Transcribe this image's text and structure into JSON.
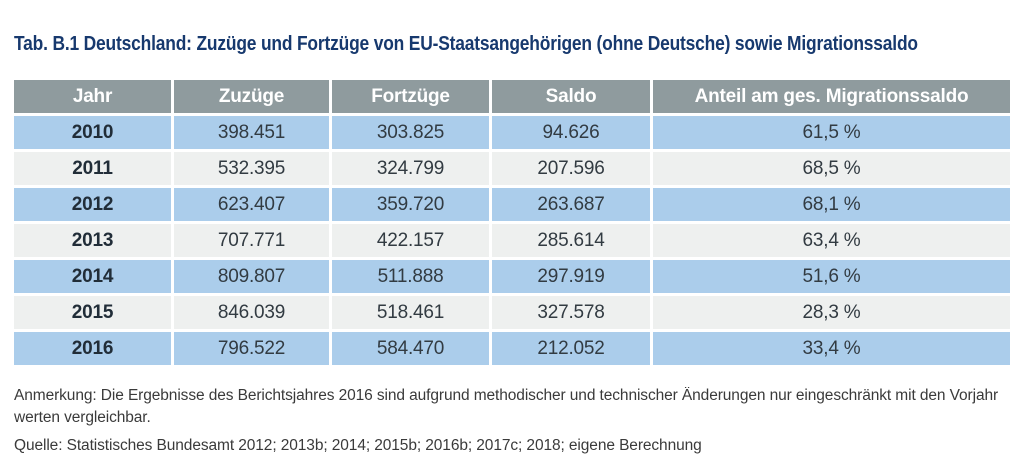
{
  "title": "Tab. B.1 Deutschland: Zuzüge und Fortzüge von EU-Staatsangehörigen (ohne Deutsche) sowie Migrationssaldo",
  "colors": {
    "title_blue": "#17396e",
    "header_gray": "#8f9b9e",
    "row_blue": "#abcdeb",
    "row_gray": "#eef0ef",
    "header_text": "#ffffff",
    "cell_text": "#323b42"
  },
  "table": {
    "columns": [
      "Jahr",
      "Zuzüge",
      "Fortzüge",
      "Saldo",
      "Anteil am ges. Migrationssaldo"
    ],
    "rows": [
      [
        "2010",
        "398.451",
        "303.825",
        "94.626",
        "61,5 %"
      ],
      [
        "2011",
        "532.395",
        "324.799",
        "207.596",
        "68,5 %"
      ],
      [
        "2012",
        "623.407",
        "359.720",
        "263.687",
        "68,1 %"
      ],
      [
        "2013",
        "707.771",
        "422.157",
        "285.614",
        "63,4 %"
      ],
      [
        "2014",
        "809.807",
        "511.888",
        "297.919",
        "51,6 %"
      ],
      [
        "2015",
        "846.039",
        "518.461",
        "327.578",
        "28,3 %"
      ],
      [
        "2016",
        "796.522",
        "584.470",
        "212.052",
        "33,4 %"
      ]
    ]
  },
  "notes": {
    "annotation_line1": "Anmerkung: Die Ergebnisse des Berichtsjahres 2016 sind aufgrund methodischer und technischer Änderungen nur eingeschränkt mit den Vorjahr",
    "annotation_line2": "werten vergleichbar.",
    "source": "Quelle: Statistisches Bundesamt 2012; 2013b; 2014; 2015b; 2016b; 2017c; 2018; eigene Berechnung"
  }
}
